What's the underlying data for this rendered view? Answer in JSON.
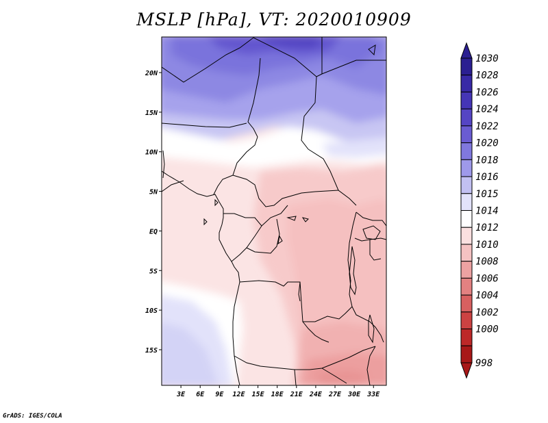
{
  "title": "MSLP [hPa], VT: 2020010909",
  "credit": "GrADS: IGES/COLA",
  "map": {
    "lat_labels": [
      "20N",
      "15N",
      "10N",
      "5N",
      "EQ",
      "5S",
      "10S",
      "15S"
    ],
    "lat_values": [
      20,
      15,
      10,
      5,
      0,
      -5,
      -10,
      -15
    ],
    "lon_labels": [
      "3E",
      "6E",
      "9E",
      "12E",
      "15E",
      "18E",
      "21E",
      "24E",
      "27E",
      "30E",
      "33E"
    ],
    "lon_values": [
      3,
      6,
      9,
      12,
      15,
      18,
      21,
      24,
      27,
      30,
      33
    ],
    "lat_range": [
      -19.5,
      24.5
    ],
    "lon_range": [
      0,
      35
    ]
  },
  "colorbar": {
    "labels": [
      "1030",
      "1028",
      "1026",
      "1024",
      "1022",
      "1020",
      "1018",
      "1016",
      "1015",
      "1014",
      "1012",
      "1010",
      "1008",
      "1006",
      "1004",
      "1002",
      "1000",
      "998"
    ],
    "colors": [
      "#2b1f91",
      "#3829a6",
      "#4535b6",
      "#5545c4",
      "#6a5cd2",
      "#8078de",
      "#9e99ea",
      "#c2c0f2",
      "#e2e2fa",
      "#ffffff",
      "#fbe0e0",
      "#f5c2c2",
      "#eda2a2",
      "#e38181",
      "#d86060",
      "#cc4242",
      "#bd2828",
      "#a81818"
    ]
  }
}
